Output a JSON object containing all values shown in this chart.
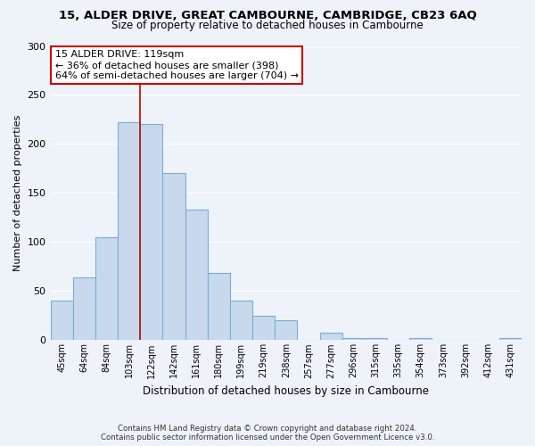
{
  "title": "15, ALDER DRIVE, GREAT CAMBOURNE, CAMBRIDGE, CB23 6AQ",
  "subtitle": "Size of property relative to detached houses in Cambourne",
  "xlabel": "Distribution of detached houses by size in Cambourne",
  "ylabel": "Number of detached properties",
  "categories": [
    "45sqm",
    "64sqm",
    "84sqm",
    "103sqm",
    "122sqm",
    "142sqm",
    "161sqm",
    "180sqm",
    "199sqm",
    "219sqm",
    "238sqm",
    "257sqm",
    "277sqm",
    "296sqm",
    "315sqm",
    "335sqm",
    "354sqm",
    "373sqm",
    "392sqm",
    "412sqm",
    "431sqm"
  ],
  "values": [
    40,
    64,
    105,
    222,
    220,
    170,
    133,
    69,
    40,
    25,
    20,
    0,
    8,
    2,
    2,
    0,
    2,
    0,
    0,
    0,
    2
  ],
  "bar_color": "#c8d9ee",
  "bar_edge_color": "#7aaed4",
  "highlight_line_color": "#cc0000",
  "annotation_title": "15 ALDER DRIVE: 119sqm",
  "annotation_line1": "← 36% of detached houses are smaller (398)",
  "annotation_line2": "64% of semi-detached houses are larger (704) →",
  "annotation_box_color": "#ffffff",
  "annotation_box_edge_color": "#cc0000",
  "ylim": [
    0,
    300
  ],
  "yticks": [
    0,
    50,
    100,
    150,
    200,
    250,
    300
  ],
  "footer_line1": "Contains HM Land Registry data © Crown copyright and database right 2024.",
  "footer_line2": "Contains public sector information licensed under the Open Government Licence v3.0.",
  "background_color": "#eef2f9",
  "grid_color": "#ffffff"
}
